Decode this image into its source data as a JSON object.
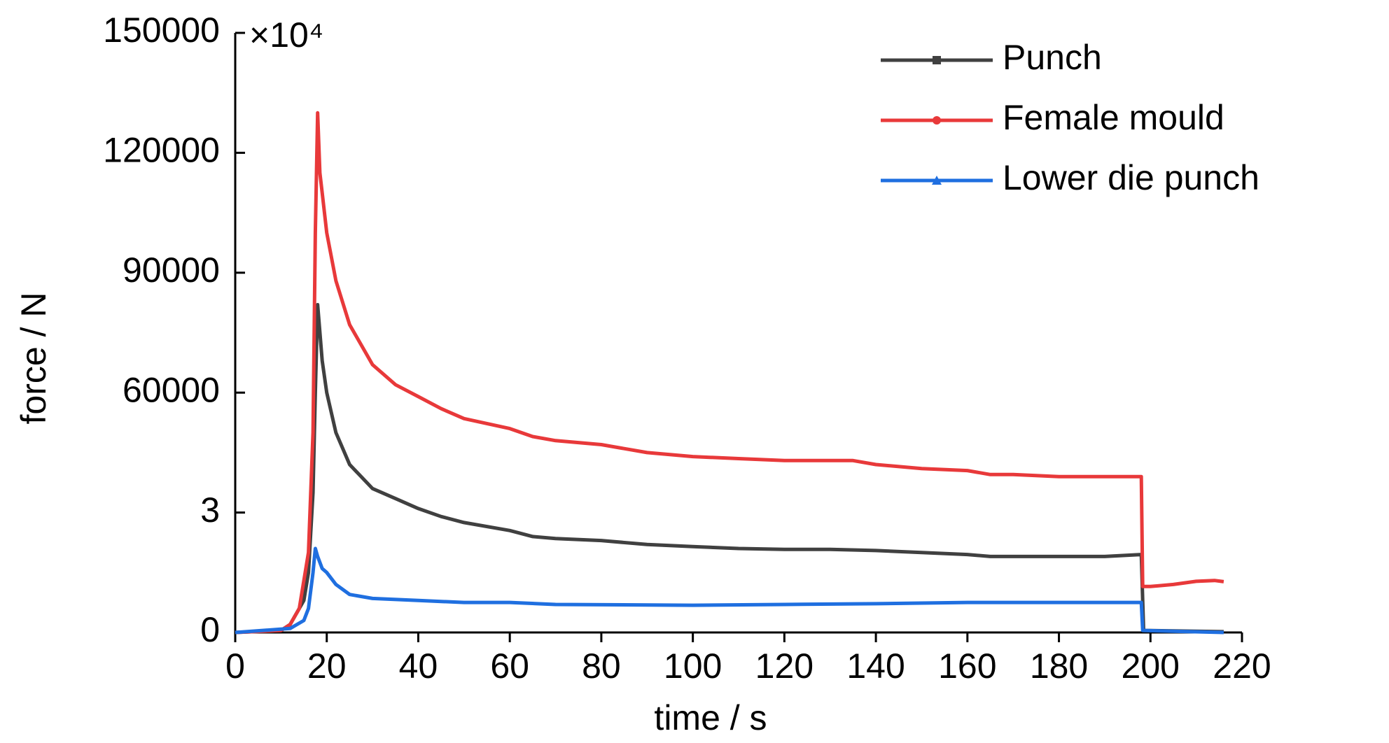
{
  "chart_data": {
    "type": "line",
    "xlabel": "time / s",
    "ylabel": "force / N",
    "annotation": "×10⁴",
    "xlim": [
      0,
      220
    ],
    "xticks": [
      0,
      20,
      40,
      60,
      80,
      100,
      120,
      140,
      160,
      180,
      200,
      220
    ],
    "ylim": [
      0,
      150000
    ],
    "yticks": [
      0,
      {
        "value": 30000,
        "label": "3"
      },
      60000,
      90000,
      120000,
      150000
    ],
    "legend": "upper right",
    "series": [
      {
        "name": "Punch",
        "color": "#404040",
        "marker": "square",
        "x": [
          0,
          10,
          12,
          15,
          16,
          17,
          17.5,
          18,
          19,
          20,
          22,
          25,
          30,
          35,
          40,
          45,
          50,
          60,
          65,
          70,
          80,
          90,
          100,
          110,
          120,
          130,
          140,
          150,
          160,
          165,
          170,
          180,
          190,
          198,
          198.5,
          216
        ],
        "values": [
          0,
          500,
          2000,
          8000,
          15000,
          35000,
          60000,
          82000,
          68000,
          60000,
          50000,
          42000,
          36000,
          33500,
          31000,
          29000,
          27500,
          25500,
          24000,
          23500,
          23000,
          22000,
          21500,
          21000,
          20800,
          20800,
          20500,
          20000,
          19500,
          19000,
          19000,
          19000,
          19000,
          19500,
          500,
          200
        ]
      },
      {
        "name": "Female mould",
        "color": "#e8393a",
        "marker": "circle",
        "x": [
          0,
          10,
          12,
          14,
          16,
          17,
          17.5,
          18,
          18.5,
          19,
          20,
          22,
          25,
          30,
          35,
          40,
          45,
          50,
          60,
          65,
          70,
          80,
          90,
          100,
          110,
          120,
          130,
          135,
          140,
          150,
          160,
          165,
          170,
          180,
          190,
          198,
          198.3,
          200,
          205,
          210,
          214,
          216
        ],
        "values": [
          0,
          500,
          2000,
          6000,
          20000,
          50000,
          100000,
          130000,
          115000,
          110000,
          100000,
          88000,
          77000,
          67000,
          62000,
          59000,
          56000,
          53500,
          51000,
          49000,
          48000,
          47000,
          45000,
          44000,
          43500,
          43000,
          43000,
          43000,
          42000,
          41000,
          40500,
          39500,
          39500,
          39000,
          39000,
          39000,
          11500,
          11500,
          12000,
          12800,
          13000,
          12700
        ]
      },
      {
        "name": "Lower die punch",
        "color": "#1f6fe0",
        "marker": "triangle",
        "x": [
          0,
          12,
          15,
          16,
          17,
          17.5,
          18,
          19,
          20,
          22,
          25,
          30,
          40,
          50,
          60,
          70,
          100,
          120,
          140,
          160,
          180,
          198,
          198.3,
          205,
          216
        ],
        "values": [
          0,
          1000,
          3000,
          6000,
          15000,
          21000,
          19000,
          16000,
          15000,
          12000,
          9500,
          8500,
          8000,
          7500,
          7500,
          7000,
          6800,
          7000,
          7200,
          7500,
          7500,
          7500,
          500,
          300,
          0
        ]
      }
    ]
  }
}
